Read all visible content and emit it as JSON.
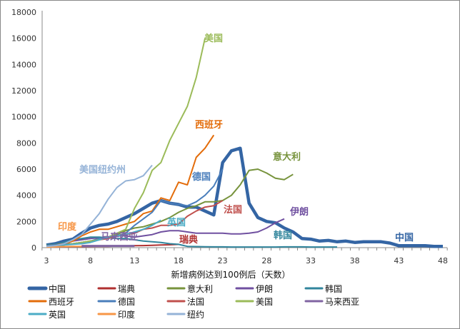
{
  "chart_data": {
    "type": "line",
    "title": "",
    "xlabel": "新增病例达到100例后（天数）",
    "ylabel": "",
    "xlim": [
      3,
      48
    ],
    "ylim": [
      0,
      18000
    ],
    "xticks": [
      3,
      8,
      13,
      18,
      23,
      28,
      33,
      38,
      43,
      48
    ],
    "yticks": [
      0,
      2000,
      4000,
      6000,
      8000,
      10000,
      12000,
      14000,
      16000,
      18000
    ],
    "legend_position": "bottom",
    "series": [
      {
        "name": "中国",
        "label": "中国",
        "color": "#3465a4",
        "width": 4.5,
        "start": 3,
        "values": [
          200,
          300,
          500,
          650,
          1100,
          1500,
          1700,
          1800,
          2000,
          2300,
          2600,
          3000,
          3400,
          3600,
          3400,
          3300,
          3100,
          3100,
          2800,
          2500,
          6500,
          7400,
          7600,
          3400,
          2300,
          2000,
          1900,
          1500,
          1200,
          700,
          650,
          500,
          550,
          450,
          500,
          400,
          450,
          450,
          450,
          350,
          150,
          150,
          150,
          150,
          100,
          100
        ]
      },
      {
        "name": "瑞典",
        "label": "瑞典",
        "color": "#b03030",
        "width": 2,
        "start": 3,
        "values": [
          50,
          60,
          70,
          80,
          80,
          90,
          100,
          100,
          120,
          130,
          150,
          160,
          180,
          200,
          220,
          250
        ]
      },
      {
        "name": "意大利",
        "label": "意大利",
        "color": "#77933c",
        "width": 2,
        "start": 3,
        "values": [
          200,
          250,
          300,
          300,
          400,
          500,
          600,
          800,
          1000,
          1300,
          1500,
          1600,
          1800,
          2000,
          2300,
          2700,
          3000,
          3200,
          3500,
          3500,
          3600,
          4000,
          4800,
          5900,
          6000,
          5700,
          5300,
          5200,
          5600
        ]
      },
      {
        "name": "伊朗",
        "label": "伊朗",
        "color": "#7050a0",
        "width": 2,
        "start": 3,
        "values": [
          100,
          200,
          300,
          500,
          600,
          700,
          750,
          800,
          900,
          900,
          800,
          900,
          1000,
          1200,
          1300,
          1300,
          1200,
          1100,
          1100,
          1100,
          1100,
          1050,
          1050,
          1100,
          1200,
          1500,
          1900,
          2200
        ]
      },
      {
        "name": "韩国",
        "label": "韩国",
        "color": "#31859c",
        "width": 2,
        "start": 3,
        "values": [
          200,
          250,
          400,
          600,
          700,
          800,
          800,
          750,
          700,
          700,
          600,
          500,
          450,
          400,
          300,
          250,
          100,
          80,
          70,
          60,
          60,
          50,
          50,
          50,
          50,
          50,
          50,
          60,
          60,
          60,
          50,
          50,
          50,
          50
        ]
      },
      {
        "name": "西班牙",
        "label": "西班牙",
        "color": "#e36c0a",
        "width": 2,
        "start": 3,
        "values": [
          150,
          200,
          300,
          500,
          900,
          1200,
          1400,
          1400,
          1600,
          1800,
          2000,
          2600,
          2800,
          3800,
          3600,
          5000,
          4800,
          6900,
          7600,
          8600
        ]
      },
      {
        "name": "德国",
        "label": "德国",
        "color": "#4a7ebb",
        "width": 2,
        "start": 3,
        "values": [
          150,
          200,
          250,
          300,
          400,
          500,
          700,
          800,
          900,
          1100,
          1700,
          2200,
          2700,
          3600,
          3400,
          3300,
          3200,
          3500,
          4000,
          4700,
          6000
        ]
      },
      {
        "name": "法国",
        "label": "法国",
        "color": "#c0504d",
        "width": 2,
        "start": 3,
        "values": [
          100,
          150,
          200,
          300,
          400,
          500,
          600,
          700,
          900,
          1000,
          1100,
          1400,
          1500,
          1700,
          1700,
          1800,
          2400,
          2800,
          3100,
          3200,
          3600
        ]
      },
      {
        "name": "美国",
        "label": "美国",
        "color": "#9bbb59",
        "width": 2,
        "start": 3,
        "values": [
          100,
          150,
          200,
          300,
          400,
          500,
          600,
          800,
          1100,
          1400,
          3000,
          4200,
          5900,
          6500,
          8200,
          9500,
          10800,
          13000,
          16000
        ]
      },
      {
        "name": "马来西亚",
        "label": "马来西亚",
        "color": "#8064a2",
        "width": 3,
        "start": 7,
        "values": [
          130,
          130,
          130,
          130,
          130,
          130,
          130
        ]
      },
      {
        "name": "英国",
        "label": "英国",
        "color": "#4bacc6",
        "width": 2,
        "start": 3,
        "values": [
          100,
          150,
          200,
          250,
          300,
          400,
          600,
          800,
          900,
          1000,
          1200,
          1400,
          1700,
          2100
        ]
      },
      {
        "name": "印度",
        "label": "印度",
        "color": "#f79646",
        "width": 2,
        "start": 3,
        "values": [
          50,
          60,
          80,
          100,
          100
        ]
      },
      {
        "name": "纽约",
        "label": "美国纽约州",
        "color": "#95b3d7",
        "width": 2,
        "start": 3,
        "values": [
          100,
          150,
          300,
          600,
          1000,
          1800,
          2600,
          3700,
          4600,
          5100,
          5200,
          5500,
          6300
        ]
      }
    ]
  }
}
